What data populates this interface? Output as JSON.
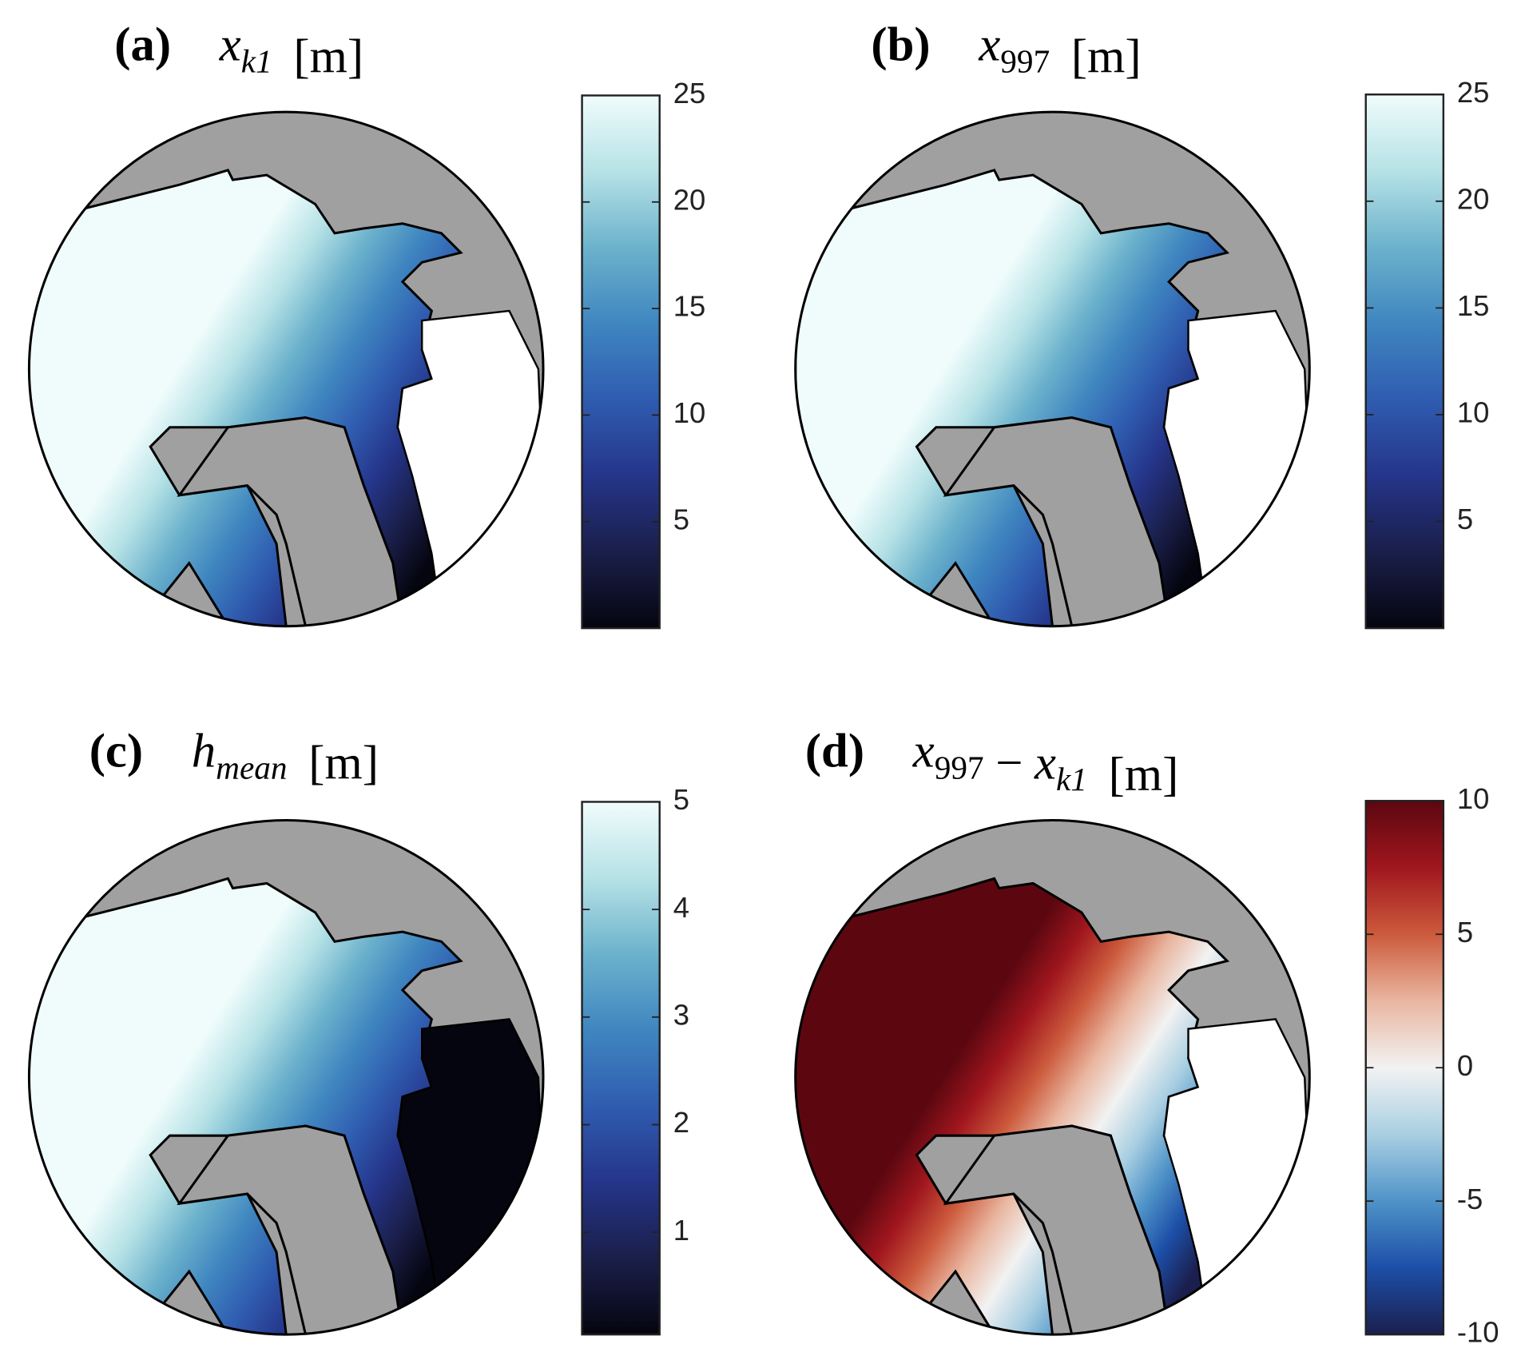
{
  "chart_data": [
    {
      "type": "map",
      "label": "(a)",
      "title": [
        {
          "text": "x",
          "sub": "k1"
        }
      ],
      "unit": "[m]",
      "colormap": [
        "#05050f",
        "#1a1f4a",
        "#25358a",
        "#2f5cb0",
        "#3f86c0",
        "#6cb2cc",
        "#b6e2e6",
        "#f0fcfc"
      ],
      "clim": [
        0,
        25
      ],
      "cticks": [
        5,
        10,
        15,
        20,
        25
      ]
    },
    {
      "type": "map",
      "label": "(b)",
      "title": [
        {
          "text": "x",
          "sub": "997"
        }
      ],
      "unit": "[m]",
      "colormap": [
        "#05050f",
        "#1a1f4a",
        "#25358a",
        "#2f5cb0",
        "#3f86c0",
        "#6cb2cc",
        "#b6e2e6",
        "#f0fcfc"
      ],
      "clim": [
        0,
        25
      ],
      "cticks": [
        5,
        10,
        15,
        20,
        25
      ]
    },
    {
      "type": "map",
      "label": "(c)",
      "title": [
        {
          "text": "h",
          "sub": "mean"
        }
      ],
      "unit": "[m]",
      "colormap": [
        "#05050f",
        "#1a1f4a",
        "#25358a",
        "#2f5cb0",
        "#3f86c0",
        "#6cb2cc",
        "#b6e2e6",
        "#f0fcfc"
      ],
      "clim": [
        0.05,
        5
      ],
      "cticks": [
        1,
        2,
        3,
        4,
        5
      ]
    },
    {
      "type": "map",
      "label": "(d)",
      "title": [
        {
          "text": "x",
          "sub": "997"
        },
        {
          "text": "−"
        },
        {
          "text": "x",
          "sub": "k1"
        }
      ],
      "unit": "[m]",
      "colormap": [
        "#1b1f4e",
        "#1d4fa8",
        "#4f93c8",
        "#a9cfe2",
        "#f2f2f2",
        "#e9b6a0",
        "#cc5a3c",
        "#a0161e",
        "#5c0710"
      ],
      "clim": [
        -10,
        10
      ],
      "cticks": [
        -10,
        -5,
        0,
        5,
        10
      ]
    }
  ]
}
